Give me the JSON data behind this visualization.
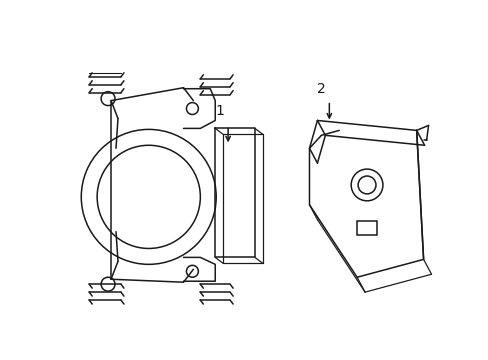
{
  "bg_color": "#ffffff",
  "line_color": "#1a1a1a",
  "line_width": 1.1,
  "label1": "1",
  "label2": "2",
  "figsize": [
    4.89,
    3.6
  ],
  "dpi": 100
}
